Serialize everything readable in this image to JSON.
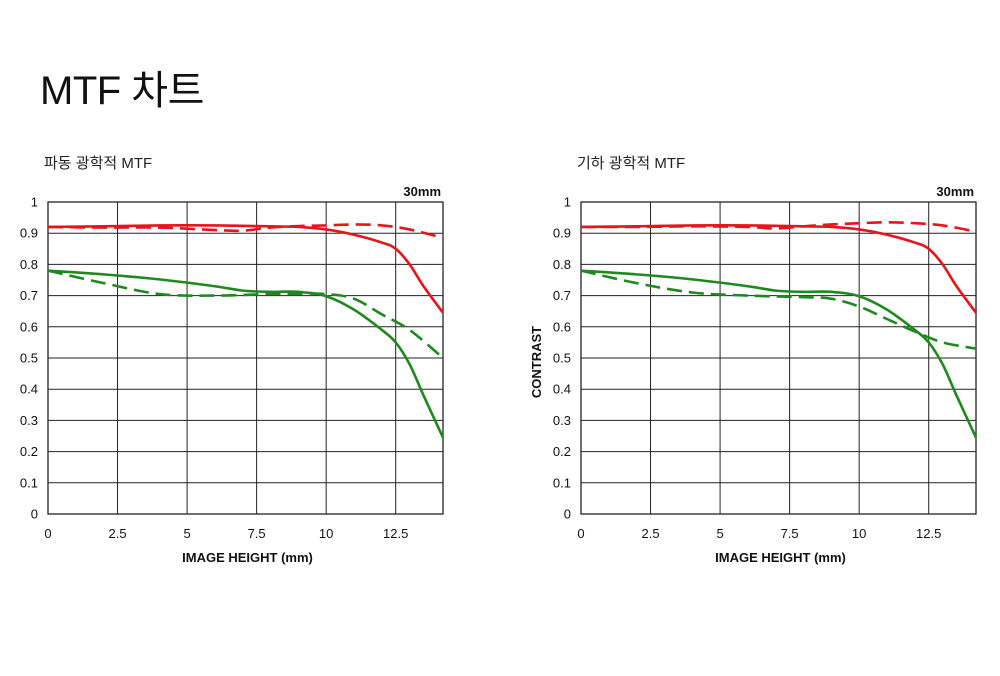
{
  "page": {
    "title": "MTF 차트"
  },
  "colors": {
    "sagittal": "#e8141b",
    "meridional": "#1e8a1e",
    "grid": "#222222"
  },
  "chart_data": [
    {
      "type": "line",
      "subtitle": "파동 광학적 MTF",
      "focal_length": "30mm",
      "xlabel": "IMAGE HEIGHT (mm)",
      "ylabel": "",
      "xlim": [
        0,
        14.2
      ],
      "ylim": [
        0,
        1
      ],
      "xticks": [
        "0",
        "2.5",
        "5",
        "7.5",
        "10",
        "12.5"
      ],
      "xtick_values": [
        0,
        2.5,
        5,
        7.5,
        10,
        12.5
      ],
      "yticks": [
        "0",
        "0.1",
        "0.2",
        "0.3",
        "0.4",
        "0.5",
        "0.6",
        "0.7",
        "0.8",
        "0.9",
        "1"
      ],
      "ytick_values": [
        0,
        0.1,
        0.2,
        0.3,
        0.4,
        0.5,
        0.6,
        0.7,
        0.8,
        0.9,
        1
      ],
      "grid": true,
      "series": [
        {
          "color": "#e8141b",
          "style": "solid",
          "x": [
            0,
            2,
            4,
            6,
            8,
            9,
            10,
            11,
            12,
            12.5,
            13,
            13.5,
            14.2
          ],
          "y": [
            0.92,
            0.922,
            0.925,
            0.925,
            0.922,
            0.92,
            0.912,
            0.895,
            0.87,
            0.85,
            0.8,
            0.73,
            0.645
          ]
        },
        {
          "color": "#e8141b",
          "style": "dashed",
          "x": [
            0,
            2,
            4,
            6,
            7,
            8,
            9,
            10,
            11,
            12,
            13,
            14.2
          ],
          "y": [
            0.92,
            0.918,
            0.918,
            0.91,
            0.908,
            0.918,
            0.923,
            0.925,
            0.928,
            0.925,
            0.912,
            0.885
          ]
        },
        {
          "color": "#1e8a1e",
          "style": "solid",
          "x": [
            0,
            2,
            4,
            6,
            7,
            8,
            9,
            10,
            11,
            12,
            12.5,
            13,
            13.5,
            14.2
          ],
          "y": [
            0.78,
            0.768,
            0.752,
            0.73,
            0.716,
            0.712,
            0.712,
            0.698,
            0.655,
            0.59,
            0.55,
            0.48,
            0.38,
            0.245
          ]
        },
        {
          "color": "#1e8a1e",
          "style": "dashed",
          "x": [
            0,
            2,
            4,
            6,
            8,
            9,
            10,
            11,
            12,
            13,
            14.2
          ],
          "y": [
            0.78,
            0.74,
            0.705,
            0.7,
            0.705,
            0.706,
            0.705,
            0.69,
            0.64,
            0.59,
            0.5
          ]
        }
      ]
    },
    {
      "type": "line",
      "subtitle": "기하 광학적 MTF",
      "focal_length": "30mm",
      "xlabel": "IMAGE HEIGHT (mm)",
      "ylabel": "CONTRAST",
      "xlim": [
        0,
        14.2
      ],
      "ylim": [
        0,
        1
      ],
      "xticks": [
        "0",
        "2.5",
        "5",
        "7.5",
        "10",
        "12.5"
      ],
      "xtick_values": [
        0,
        2.5,
        5,
        7.5,
        10,
        12.5
      ],
      "yticks": [
        "0",
        "0.1",
        "0.2",
        "0.3",
        "0.4",
        "0.5",
        "0.6",
        "0.7",
        "0.8",
        "0.9",
        "1"
      ],
      "ytick_values": [
        0,
        0.1,
        0.2,
        0.3,
        0.4,
        0.5,
        0.6,
        0.7,
        0.8,
        0.9,
        1
      ],
      "grid": true,
      "series": [
        {
          "color": "#e8141b",
          "style": "solid",
          "x": [
            0,
            2,
            4,
            6,
            8,
            9,
            10,
            11,
            12,
            12.5,
            13,
            13.5,
            14.2
          ],
          "y": [
            0.92,
            0.922,
            0.925,
            0.925,
            0.922,
            0.92,
            0.912,
            0.895,
            0.87,
            0.85,
            0.8,
            0.73,
            0.645
          ]
        },
        {
          "color": "#e8141b",
          "style": "dashed",
          "x": [
            0,
            2,
            4,
            6,
            7,
            8,
            9,
            10,
            11,
            12,
            13,
            14.2
          ],
          "y": [
            0.92,
            0.92,
            0.922,
            0.92,
            0.915,
            0.922,
            0.928,
            0.932,
            0.935,
            0.932,
            0.925,
            0.905
          ]
        },
        {
          "color": "#1e8a1e",
          "style": "solid",
          "x": [
            0,
            2,
            4,
            6,
            7,
            8,
            9,
            10,
            11,
            12,
            12.5,
            13,
            13.5,
            14.2
          ],
          "y": [
            0.78,
            0.768,
            0.752,
            0.73,
            0.716,
            0.712,
            0.712,
            0.698,
            0.655,
            0.59,
            0.55,
            0.48,
            0.38,
            0.245
          ]
        },
        {
          "color": "#1e8a1e",
          "style": "dashed",
          "x": [
            0,
            2,
            4,
            6,
            8,
            9,
            10,
            11,
            12,
            13,
            14.2
          ],
          "y": [
            0.78,
            0.74,
            0.71,
            0.7,
            0.695,
            0.69,
            0.665,
            0.625,
            0.585,
            0.55,
            0.53
          ]
        }
      ]
    }
  ]
}
